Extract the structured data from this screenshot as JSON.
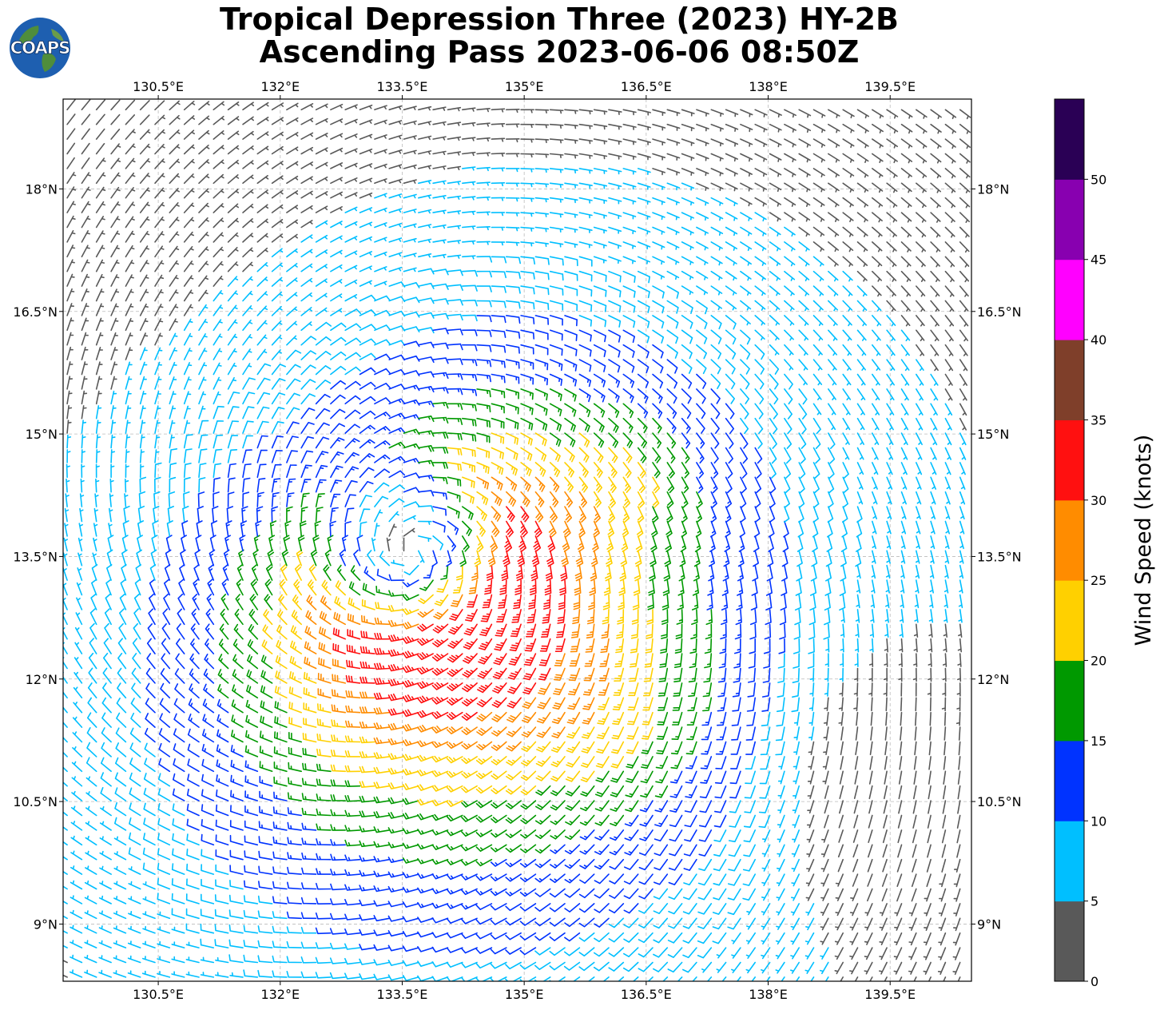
{
  "title": {
    "line1": "Tropical Depression Three (2023) HY-2B",
    "line2": "Ascending Pass 2023-06-06 08:50Z"
  },
  "logo": {
    "text": "COAPS",
    "icon": "globe-icon"
  },
  "map": {
    "lon_range": [
      129.33,
      140.5
    ],
    "lat_range": [
      8.3,
      19.1
    ],
    "lon_ticks": [
      130.5,
      132,
      133.5,
      135,
      136.5,
      138,
      139.5
    ],
    "lat_ticks": [
      9,
      10.5,
      12,
      13.5,
      15,
      16.5,
      18
    ],
    "lon_tick_labels": [
      "130.5°E",
      "132°E",
      "133.5°E",
      "135°E",
      "136.5°E",
      "138°E",
      "139.5°E"
    ],
    "lat_tick_labels": [
      "9°N",
      "10.5°N",
      "12°N",
      "13.5°N",
      "15°N",
      "16.5°N",
      "18°N"
    ],
    "grid": "dashed",
    "storm_center": {
      "lon": 133.6,
      "lat": 13.55
    }
  },
  "colorbar": {
    "label": "Wind Speed (knots)",
    "bounds": [
      0,
      5,
      10,
      15,
      20,
      25,
      30,
      35,
      40,
      45,
      50,
      55
    ],
    "tick_labels": [
      "0",
      "5",
      "10",
      "15",
      "20",
      "25",
      "30",
      "35",
      "40",
      "45",
      "50"
    ],
    "colors": [
      "#595959",
      "#00bfff",
      "#0033ff",
      "#009900",
      "#ffd000",
      "#ff8c00",
      "#ff1010",
      "#7f3f2a",
      "#ff00ff",
      "#8800b0",
      "#2a0055"
    ]
  }
}
